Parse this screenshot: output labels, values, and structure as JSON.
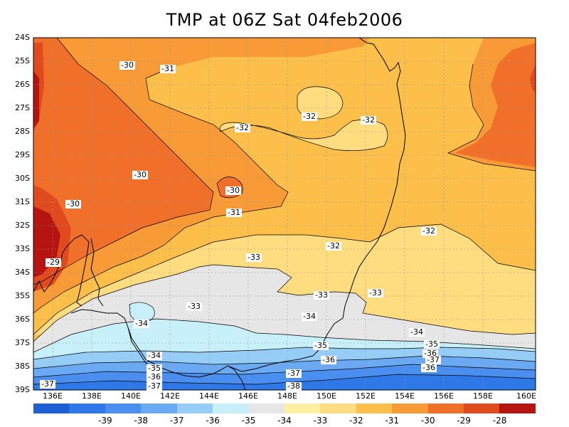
{
  "title": "TMP at 06Z Sat 04feb2006",
  "lat_labels": [
    "24S",
    "25S",
    "26S",
    "27S",
    "28S",
    "29S",
    "30S",
    "31S",
    "32S",
    "33S",
    "34S",
    "35S",
    "36S",
    "37S",
    "38S",
    "39S"
  ],
  "lon_labels": [
    "136E",
    "138E",
    "140E",
    "142E",
    "144E",
    "146E",
    "148E",
    "150E",
    "152E",
    "154E",
    "156E",
    "158E",
    "160E"
  ],
  "contour_labels": [
    {
      "text": "-30",
      "name": "contour-label-a"
    },
    {
      "text": "-31",
      "name": "contour-label-b"
    },
    {
      "text": "-32",
      "name": "contour-label-c"
    },
    {
      "text": "-32",
      "name": "contour-label-d"
    },
    {
      "text": "-32",
      "name": "contour-label-e"
    },
    {
      "text": "-30",
      "name": "contour-label-f"
    },
    {
      "text": "-30",
      "name": "contour-label-g"
    },
    {
      "text": "-30",
      "name": "contour-label-h"
    },
    {
      "text": "-31",
      "name": "contour-label-i"
    },
    {
      "text": "-32",
      "name": "contour-label-j"
    },
    {
      "text": "-29",
      "name": "contour-label-k"
    },
    {
      "text": "-33",
      "name": "contour-label-l"
    },
    {
      "text": "-32",
      "name": "contour-label-m"
    },
    {
      "text": "-33",
      "name": "contour-label-n"
    },
    {
      "text": "-33",
      "name": "contour-label-o"
    },
    {
      "text": "-33",
      "name": "contour-label-p"
    },
    {
      "text": "-34",
      "name": "contour-label-q"
    },
    {
      "text": "-34",
      "name": "contour-label-r"
    },
    {
      "text": "-34",
      "name": "contour-label-s"
    },
    {
      "text": "-35",
      "name": "contour-label-t"
    },
    {
      "text": "-35",
      "name": "contour-label-u"
    },
    {
      "text": "-36",
      "name": "contour-label-v"
    },
    {
      "text": "-36",
      "name": "contour-label-w"
    },
    {
      "text": "-37",
      "name": "contour-label-x"
    },
    {
      "text": "-37",
      "name": "contour-label-y"
    },
    {
      "text": "-36",
      "name": "contour-label-z"
    },
    {
      "text": "-34",
      "name": "contour-label-aa"
    },
    {
      "text": "-35",
      "name": "contour-label-ab"
    },
    {
      "text": "-36",
      "name": "contour-label-ac"
    },
    {
      "text": "-37",
      "name": "contour-label-ad"
    },
    {
      "text": "-38",
      "name": "contour-label-ae"
    },
    {
      "text": "-37",
      "name": "contour-label-af"
    },
    {
      "text": "-37",
      "name": "contour-label-ag"
    }
  ],
  "colorbar": {
    "colors": [
      "#1e5fd6",
      "#2f78e8",
      "#4a8ff0",
      "#6aa9f3",
      "#96cdf7",
      "#c8f0fa",
      "#e6e6e6",
      "#fef0a0",
      "#fedc80",
      "#fbbf4a",
      "#f89a36",
      "#f0702a",
      "#e04a1c",
      "#b51410"
    ],
    "labels": [
      "-39",
      "-38",
      "-37",
      "-36",
      "-35",
      "-34",
      "-33",
      "-32",
      "-31",
      "-30",
      "-29",
      "-28"
    ]
  }
}
